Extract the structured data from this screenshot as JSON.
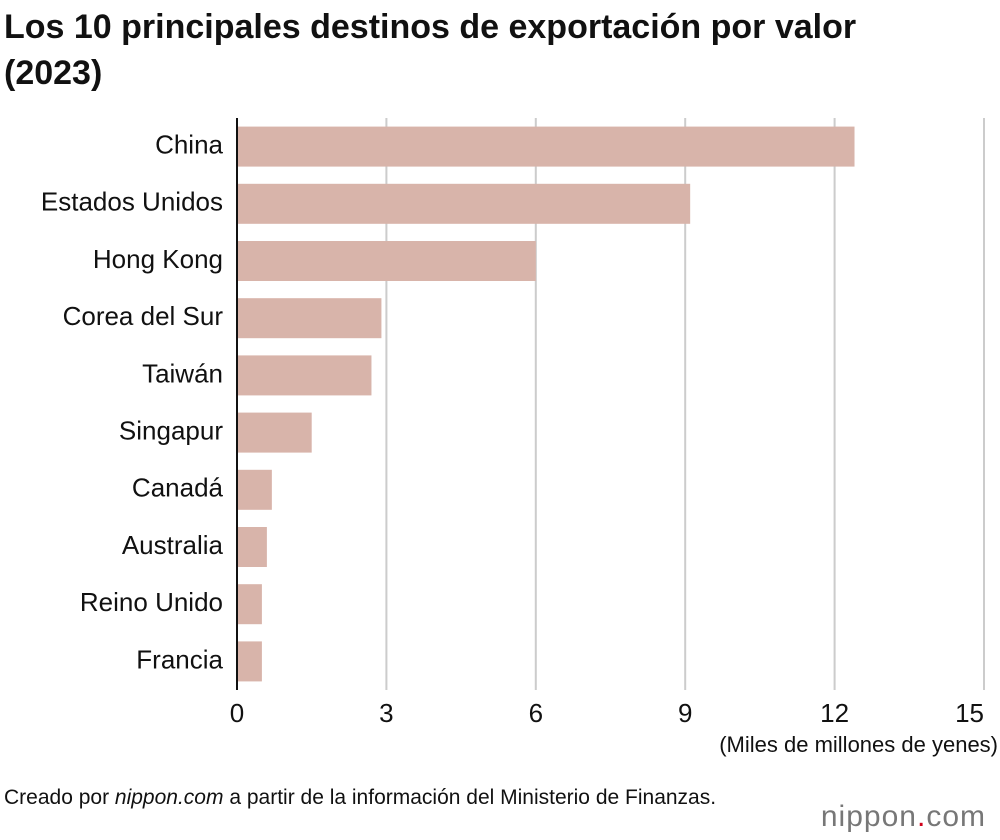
{
  "chart_data": {
    "type": "bar",
    "orientation": "horizontal",
    "title": "Los 10 principales destinos de exportación por valor (2023)",
    "categories": [
      "China",
      "Estados Unidos",
      "Hong Kong",
      "Corea del Sur",
      "Taiwán",
      "Singapur",
      "Canadá",
      "Australia",
      "Reino Unido",
      "Francia"
    ],
    "values": [
      12.4,
      9.1,
      6.0,
      2.9,
      2.7,
      1.5,
      0.7,
      0.6,
      0.5,
      0.5
    ],
    "color": "#d8b4aa",
    "xlabel": "(Miles de millones de yenes)",
    "xlim": [
      0,
      15
    ],
    "xticks": [
      0,
      3,
      6,
      9,
      12,
      15
    ],
    "grid": true
  },
  "footer": {
    "source_prefix": "Creado por",
    "source_site": "nippon.com",
    "source_suffix": "a partir de la información del Ministerio de Finanzas.",
    "logo": [
      "nippon",
      ".",
      "com"
    ]
  }
}
